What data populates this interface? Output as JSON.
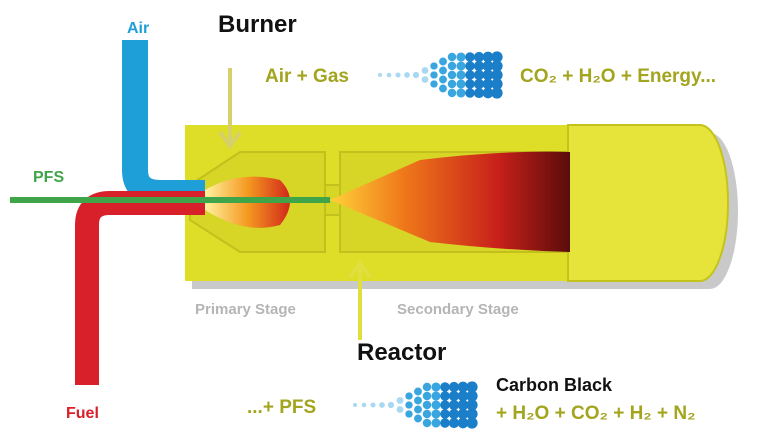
{
  "labels": {
    "air": "Air",
    "burner": "Burner",
    "air_gas": "Air + Gas",
    "combustion_products": "CO₂ + H₂O + Energy...",
    "pfs": "PFS",
    "primary_stage": "Primary Stage",
    "secondary_stage": "Secondary Stage",
    "reactor": "Reactor",
    "fuel": "Fuel",
    "plus_pfs": "...+ PFS",
    "carbon_black": "Carbon Black",
    "reactor_products": "+ H₂O + CO₂ + H₂ + N₂"
  }
}
